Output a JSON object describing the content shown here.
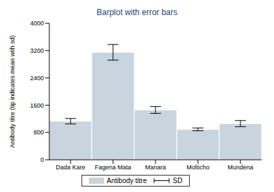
{
  "chart_data": {
    "type": "bar",
    "title": "Barplot with error bars",
    "y_label": "Antibody titre (tip indicates mean with sd)",
    "categories": [
      "Dada Kare",
      "Fagena Mata",
      "Manara",
      "Molticho",
      "Mundena"
    ],
    "series": [
      {
        "name": "Antibody titre",
        "color": "#c8d4de",
        "values": [
          1130,
          3150,
          1460,
          890,
          1060
        ],
        "errors": [
          80,
          230,
          100,
          40,
          90
        ],
        "error_name": "SD"
      }
    ],
    "ylim": [
      0,
      4000
    ],
    "yticks": [
      0,
      800,
      1600,
      2400,
      3200,
      4000
    ],
    "grid": false,
    "legend": "bottom"
  }
}
